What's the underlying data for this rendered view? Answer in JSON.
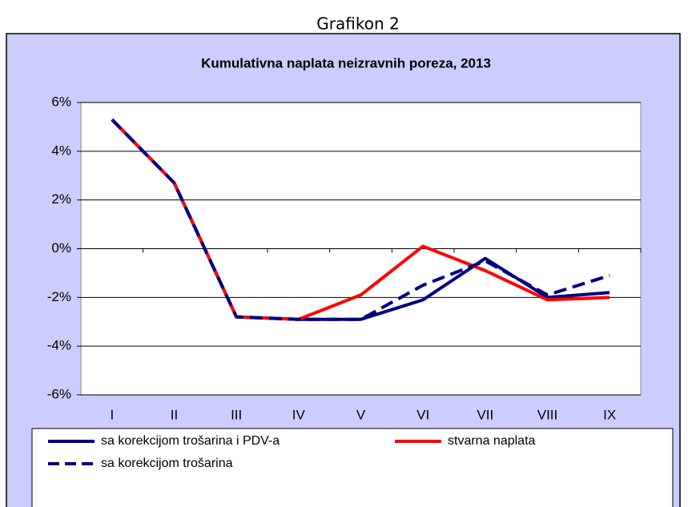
{
  "caption": "Grafikon 2",
  "chart_data": {
    "type": "line",
    "title": "Kumulativna naplata neizravnih poreza,  2013",
    "categories": [
      "I",
      "II",
      "III",
      "IV",
      "V",
      "VI",
      "VII",
      "VIII",
      "IX"
    ],
    "series": [
      {
        "name": "sa korekcijom trošarina i PDV-a",
        "color": "#000080",
        "dash": false,
        "values": [
          5.3,
          2.7,
          -2.8,
          -2.9,
          -2.9,
          -2.1,
          -0.4,
          -2.0,
          -1.8
        ]
      },
      {
        "name": "stvarna naplata",
        "color": "#ff0000",
        "dash": false,
        "values": [
          5.3,
          2.7,
          -2.8,
          -2.9,
          -1.9,
          0.1,
          -0.9,
          -2.1,
          -2.0
        ]
      },
      {
        "name": "sa korekcijom trošarina",
        "color": "#000080",
        "dash": true,
        "values": [
          5.3,
          2.7,
          -2.8,
          -2.9,
          -2.9,
          -1.5,
          -0.5,
          -1.9,
          -1.1
        ]
      }
    ],
    "ylim": [
      -6,
      6
    ],
    "yticks": [
      {
        "value": -6,
        "label": "-6%"
      },
      {
        "value": -4,
        "label": "-4%"
      },
      {
        "value": -2,
        "label": "-2%"
      },
      {
        "value": 0,
        "label": "0%"
      },
      {
        "value": 2,
        "label": "2%"
      },
      {
        "value": 4,
        "label": "4%"
      },
      {
        "value": 6,
        "label": "6%"
      }
    ],
    "grid": true
  }
}
